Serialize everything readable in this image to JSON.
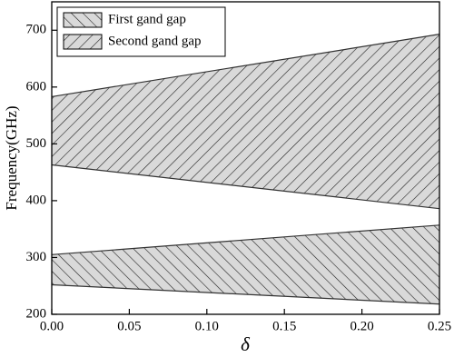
{
  "chart_data": {
    "type": "range-area",
    "x_label": "δ",
    "y_label": "Frequency(GHz)",
    "x": [
      0,
      0.25
    ],
    "series": [
      {
        "name": "First gand gap",
        "color": "#d9d9d9",
        "hatch": "backslash",
        "lower": [
          252,
          218
        ],
        "upper": [
          305,
          357
        ]
      },
      {
        "name": "Second gand gap",
        "color": "#d9d9d9",
        "hatch": "slash",
        "lower": [
          463,
          386
        ],
        "upper": [
          583,
          693
        ]
      }
    ],
    "xlim": [
      0,
      0.25
    ],
    "xticks": [
      {
        "value": 0,
        "label": "0.00"
      },
      {
        "value": 0.05,
        "label": "0.05"
      },
      {
        "value": 0.1,
        "label": "0.10"
      },
      {
        "value": 0.15,
        "label": "0.15"
      },
      {
        "value": 0.2,
        "label": "0.20"
      },
      {
        "value": 0.25,
        "label": "0.25"
      }
    ],
    "ylim": [
      200,
      750
    ],
    "yticks": [
      200,
      300,
      400,
      500,
      600,
      700
    ],
    "grid": false,
    "legend": "upper-left"
  }
}
